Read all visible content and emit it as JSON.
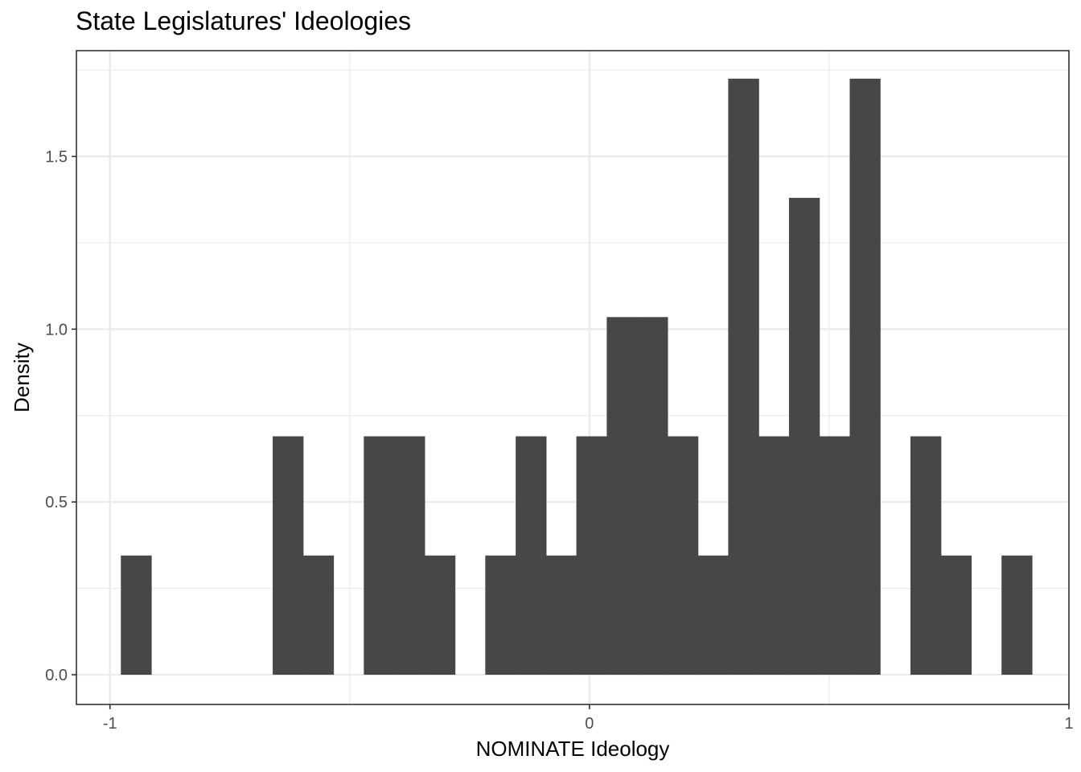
{
  "chart_data": {
    "type": "bar",
    "title": "State Legislatures' Ideologies",
    "xlabel": "NOMINATE Ideology",
    "ylabel": "Density",
    "xlim": [
      -1.07,
      1.0
    ],
    "ylim": [
      -0.086,
      1.806
    ],
    "x_ticks": [
      -1,
      0,
      1
    ],
    "x_tick_labels": [
      "-1",
      "0",
      "1"
    ],
    "y_ticks": [
      0.0,
      0.5,
      1.0,
      1.5
    ],
    "y_tick_labels": [
      "0.0",
      "0.5",
      "1.0",
      "1.5"
    ],
    "bin_width": 0.0633,
    "bins": [
      {
        "x0": -0.9773,
        "x1": -0.914,
        "value": 0.345
      },
      {
        "x0": -0.6606,
        "x1": -0.5973,
        "value": 0.69
      },
      {
        "x0": -0.5973,
        "x1": -0.534,
        "value": 0.345
      },
      {
        "x0": -0.4706,
        "x1": -0.4073,
        "value": 0.69
      },
      {
        "x0": -0.4073,
        "x1": -0.3439,
        "value": 0.69
      },
      {
        "x0": -0.3439,
        "x1": -0.2806,
        "value": 0.345
      },
      {
        "x0": -0.2173,
        "x1": -0.1539,
        "value": 0.345
      },
      {
        "x0": -0.1539,
        "x1": -0.0906,
        "value": 0.69
      },
      {
        "x0": -0.0906,
        "x1": -0.0273,
        "value": 0.345
      },
      {
        "x0": -0.0273,
        "x1": 0.0361,
        "value": 0.69
      },
      {
        "x0": 0.0361,
        "x1": 0.0994,
        "value": 1.035
      },
      {
        "x0": 0.0994,
        "x1": 0.1628,
        "value": 1.035
      },
      {
        "x0": 0.1628,
        "x1": 0.2261,
        "value": 0.69
      },
      {
        "x0": 0.2261,
        "x1": 0.2894,
        "value": 0.345
      },
      {
        "x0": 0.2894,
        "x1": 0.3528,
        "value": 1.725
      },
      {
        "x0": 0.3528,
        "x1": 0.4161,
        "value": 0.69
      },
      {
        "x0": 0.4161,
        "x1": 0.4794,
        "value": 1.38
      },
      {
        "x0": 0.4794,
        "x1": 0.5428,
        "value": 0.69
      },
      {
        "x0": 0.5428,
        "x1": 0.6061,
        "value": 1.725
      },
      {
        "x0": 0.6694,
        "x1": 0.7328,
        "value": 0.69
      },
      {
        "x0": 0.7328,
        "x1": 0.7961,
        "value": 0.345
      },
      {
        "x0": 0.8594,
        "x1": 0.9228,
        "value": 0.345
      }
    ],
    "bar_color": "#474747",
    "grid": true,
    "grid_color": "#ebebeb",
    "panel_border_color": "#333333"
  }
}
